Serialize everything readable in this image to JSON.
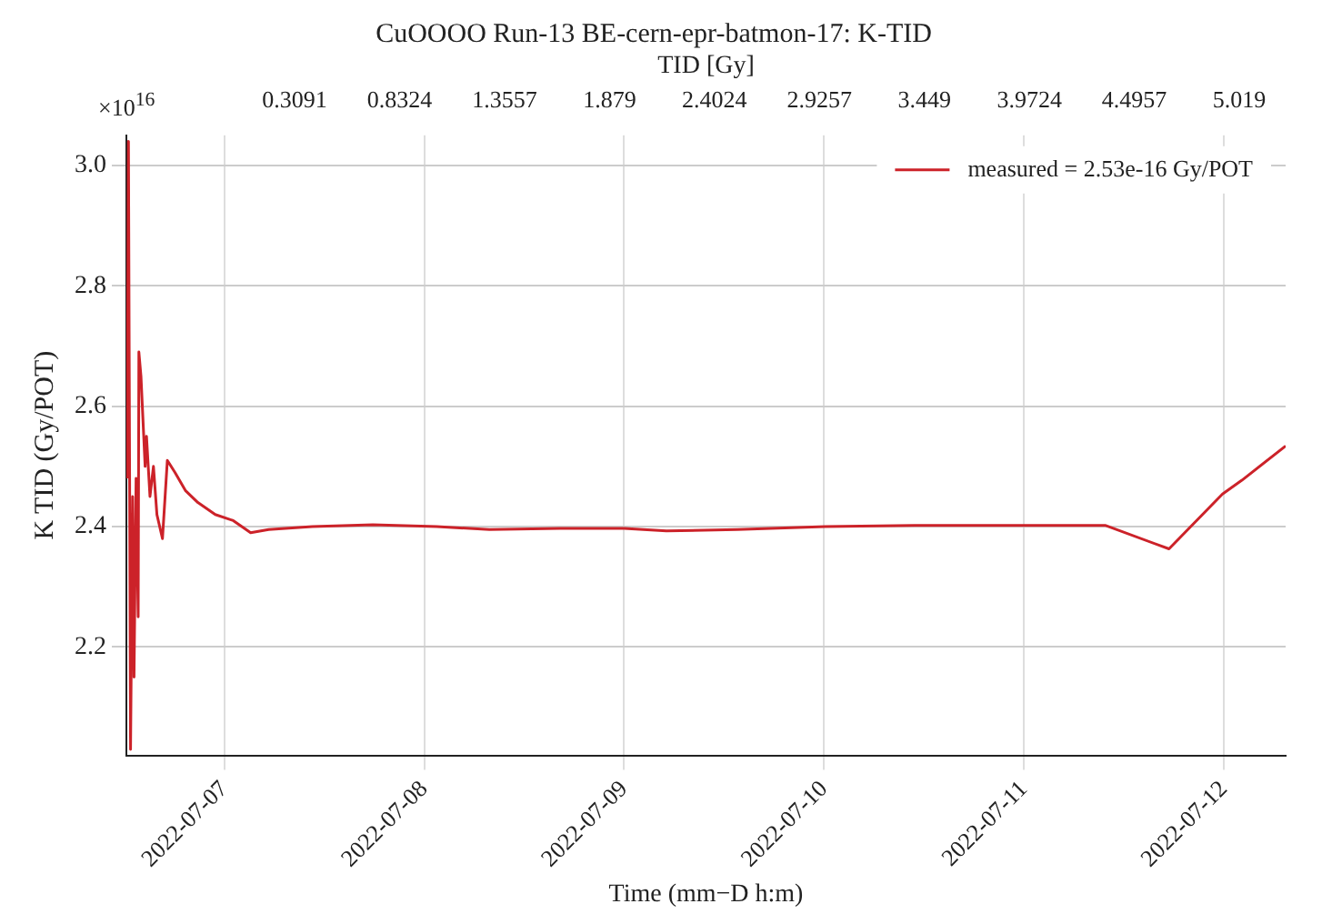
{
  "chart_data": {
    "type": "line",
    "title": "CuOOOO Run-13 BE-cern-epr-batmon-17: K-TID",
    "xlabel": "Time (mm−D h:m)",
    "ylabel": "K TID (Gy/POT)",
    "x2label": "TID [Gy]",
    "annotations": [
      "×10$^{16}$"
    ],
    "x": [
      "2022-07-06T12:20",
      "2022-07-06T12:30",
      "2022-07-06T12:45",
      "2022-07-06T13:00",
      "2022-07-06T13:10",
      "2022-07-06T13:25",
      "2022-07-06T13:40",
      "2022-07-06T13:45",
      "2022-07-06T14:00",
      "2022-07-06T14:30",
      "2022-07-06T14:40",
      "2022-07-06T15:05",
      "2022-07-06T15:30",
      "2022-07-06T15:55",
      "2022-07-06T16:35",
      "2022-07-06T17:10",
      "2022-07-06T18:05",
      "2022-07-06T19:20",
      "2022-07-06T20:50",
      "2022-07-06T22:55",
      "2022-07-07T01:05",
      "2022-07-07T03:10",
      "2022-07-07T05:20",
      "2022-07-07T10:35",
      "2022-07-07T17:50",
      "2022-07-08T01:30",
      "2022-07-08T07:50",
      "2022-07-08T16:20",
      "2022-07-09T00:00",
      "2022-07-09T05:05",
      "2022-07-09T13:35",
      "2022-07-10T00:10",
      "2022-07-10T10:50",
      "2022-07-11T09:45",
      "2022-07-11T17:25",
      "2022-07-11T23:50",
      "2022-07-12T02:10",
      "2022-07-12T07:25"
    ],
    "series": [
      {
        "name": "measured = 2.53e-16 Gy/POT",
        "color": "#cc2229",
        "values": [
          2.48,
          3.04,
          2.03,
          2.45,
          2.15,
          2.48,
          2.25,
          2.69,
          2.65,
          2.5,
          2.55,
          2.45,
          2.5,
          2.42,
          2.38,
          2.51,
          2.49,
          2.46,
          2.44,
          2.42,
          2.41,
          2.39,
          2.395,
          2.4,
          2.403,
          2.4,
          2.395,
          2.397,
          2.397,
          2.393,
          2.395,
          2.4,
          2.402,
          2.402,
          2.363,
          2.454,
          2.477,
          2.534
        ]
      }
    ],
    "xlim": [
      "2022-07-06T12:15",
      "2022-07-12T07:25"
    ],
    "xticks": [
      "2022-07-07",
      "2022-07-08",
      "2022-07-09",
      "2022-07-10",
      "2022-07-11",
      "2022-07-12"
    ],
    "ylim": [
      2.02,
      3.05
    ],
    "yticks": [
      2.2,
      2.4,
      2.6,
      2.8,
      {
        "value": 3,
        "label": "3.0"
      }
    ],
    "x2lim": [
      -0.53,
      5.25
    ],
    "x2ticks": [
      0.3091,
      0.8324,
      1.3557,
      1.879,
      2.4024,
      2.9257,
      3.449,
      3.9724,
      4.4957,
      5.019
    ],
    "grid": true,
    "legend": "top right",
    "marker": "none",
    "line_style": "solid"
  }
}
